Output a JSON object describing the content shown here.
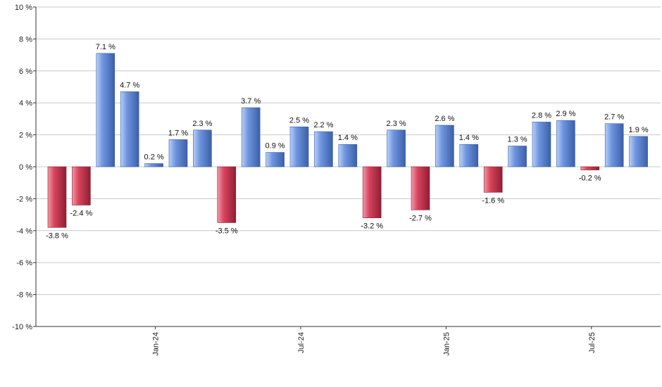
{
  "chart_data": {
    "type": "bar",
    "title": "",
    "xlabel": "",
    "ylabel": "",
    "ylim": [
      -10,
      10
    ],
    "y_ticks": [
      10,
      8,
      6,
      4,
      2,
      0,
      -2,
      -4,
      -6,
      -8,
      -10
    ],
    "y_tick_labels": [
      "10 %",
      "8 %",
      "6 %",
      "4 %",
      "2 %",
      "0 %",
      "-2 %",
      "-4 %",
      "-6 %",
      "-8 %",
      "-10 %"
    ],
    "x_tick_labels": [
      {
        "label": "Jan-24",
        "index": 4
      },
      {
        "label": "Jul-24",
        "index": 10
      },
      {
        "label": "Jan-25",
        "index": 16
      },
      {
        "label": "Jul-25",
        "index": 22
      }
    ],
    "grid": true,
    "values": [
      -3.8,
      -2.4,
      7.1,
      4.7,
      0.2,
      1.7,
      2.3,
      -3.5,
      3.7,
      0.9,
      2.5,
      2.2,
      1.4,
      -3.2,
      2.3,
      -2.7,
      2.6,
      1.4,
      -1.6,
      1.3,
      2.8,
      2.9,
      -0.2,
      2.7,
      1.9
    ],
    "data_labels": [
      "-3.8 %",
      "-2.4 %",
      "7.1 %",
      "4.7 %",
      "0.2 %",
      "1.7 %",
      "2.3 %",
      "-3.5 %",
      "3.7 %",
      "0.9 %",
      "2.5 %",
      "2.2 %",
      "1.4 %",
      "-3.2 %",
      "2.3 %",
      "-2.7 %",
      "2.6 %",
      "1.4 %",
      "-1.6 %",
      "1.3 %",
      "2.8 %",
      "2.9 %",
      "-0.2 %",
      "2.7 %",
      "1.9 %"
    ],
    "colors": {
      "positive_light": "#b8d0f8",
      "positive_mid": "#6f95e0",
      "positive_dark": "#3b5fa8",
      "negative_light": "#f29aa8",
      "negative_mid": "#d8435c",
      "negative_dark": "#8e1f33",
      "grid": "#c8c8c8",
      "axis": "#333333"
    }
  }
}
